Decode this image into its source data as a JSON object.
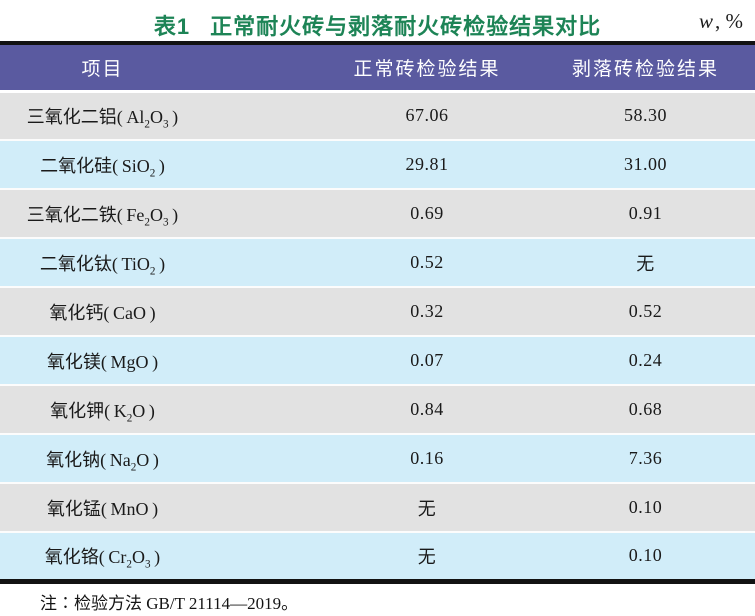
{
  "caption": {
    "prefix": "表1",
    "title": "正常耐火砖与剥落耐火砖检验结果对比",
    "unit_symbol": "w",
    "unit_suffix": ", %",
    "note": "注∶检验方法 GB/T 21114—2019。"
  },
  "table": {
    "columns": [
      "项目",
      "正常砖检验结果",
      "剥落砖检验结果"
    ],
    "none_label": "无",
    "rows": [
      {
        "item": "三氧化二铝",
        "formula": "Al2O3",
        "normal": "67.06",
        "spalled": "58.30"
      },
      {
        "item": "二氧化硅",
        "formula": "SiO2",
        "normal": "29.81",
        "spalled": "31.00"
      },
      {
        "item": "三氧化二铁",
        "formula": "Fe2O3",
        "normal": "0.69",
        "spalled": "0.91"
      },
      {
        "item": "二氧化钛",
        "formula": "TiO2",
        "normal": "0.52",
        "spalled": "无"
      },
      {
        "item": "氧化钙",
        "formula": "CaO",
        "normal": "0.32",
        "spalled": "0.52"
      },
      {
        "item": "氧化镁",
        "formula": "MgO",
        "normal": "0.07",
        "spalled": "0.24"
      },
      {
        "item": "氧化钾",
        "formula": "K2O",
        "normal": "0.84",
        "spalled": "0.68"
      },
      {
        "item": "氧化钠",
        "formula": "Na2O",
        "normal": "0.16",
        "spalled": "7.36"
      },
      {
        "item": "氧化锰",
        "formula": "MnO",
        "normal": "无",
        "spalled": "0.10"
      },
      {
        "item": "氧化铬",
        "formula": "Cr2O3",
        "normal": "无",
        "spalled": "0.10"
      }
    ]
  },
  "colors": {
    "title_green": "#1d8456",
    "header_bg": "#5a5aa0",
    "header_text": "#ffffff",
    "row_gray": "#e2e2e2",
    "row_blue": "#d1edf9",
    "border_black": "#121212",
    "body_text": "#1a1a1a"
  }
}
